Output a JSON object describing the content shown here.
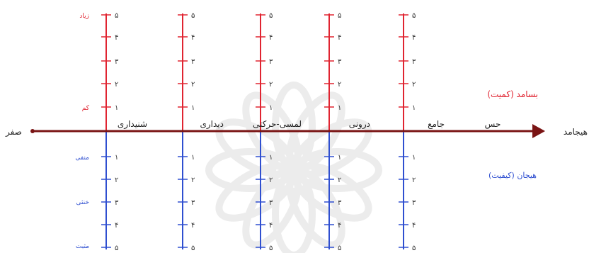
{
  "diagram": {
    "axis": {
      "left_label": "صفر",
      "right_label": "هیجامد",
      "mid_label": "حس"
    },
    "legend": {
      "upper": "بسامد (کمیت)",
      "lower": "هیجان (کیفیت)"
    },
    "upper_scale_labels": {
      "top": "زیاد",
      "bottom": "کم"
    },
    "lower_scale_labels": {
      "top": "منفی",
      "middle": "خنثی",
      "bottom": "مثبت"
    },
    "upper_ticks": [
      "۵",
      "۴",
      "۳",
      "۲",
      "۱"
    ],
    "lower_ticks": [
      "۱",
      "۲",
      "۳",
      "۴",
      "۵"
    ],
    "columns": [
      {
        "label": "شنیداری"
      },
      {
        "label": "دیداری"
      },
      {
        "label": "لمسی-حرکتی"
      },
      {
        "label": "درونی"
      },
      {
        "label": "جامع"
      }
    ],
    "colors": {
      "upper": "#e02431",
      "lower": "#2f4fd0",
      "axis": "#7a1414",
      "text": "#222222",
      "watermark": "#ececec"
    }
  }
}
